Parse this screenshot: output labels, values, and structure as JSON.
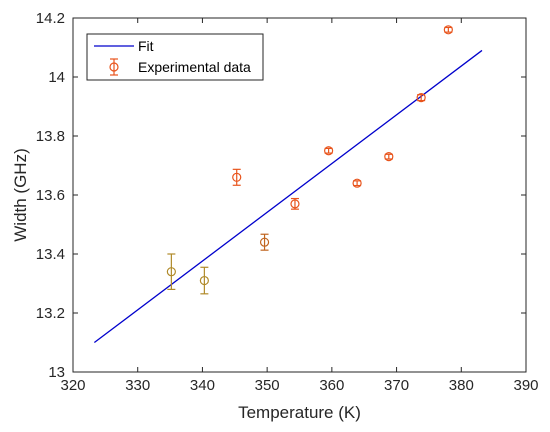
{
  "chart_data": {
    "type": "scatter",
    "xlabel": "Temperature (K)",
    "ylabel": "Width (GHz)",
    "xlim": [
      320,
      390
    ],
    "ylim": [
      13.0,
      14.2
    ],
    "x_ticks": [
      320,
      330,
      340,
      350,
      360,
      370,
      380,
      390
    ],
    "y_ticks": [
      13,
      13.2,
      13.4,
      13.6,
      13.8,
      14,
      14.2
    ],
    "x_tick_labels": [
      "320",
      "330",
      "340",
      "350",
      "360",
      "370",
      "380",
      "390"
    ],
    "y_tick_labels": [
      "13",
      "13.2",
      "13.4",
      "13.6",
      "13.8",
      "14",
      "14.2"
    ],
    "grid": false,
    "legend_position": "top-left",
    "series": [
      {
        "name": "Fit",
        "kind": "line",
        "color": "#0000cc",
        "points": [
          [
            323.3,
            13.1
          ],
          [
            383.2,
            14.09
          ]
        ]
      },
      {
        "name": "Experimental data",
        "kind": "errorbar",
        "color": "#e8541c",
        "points": [
          {
            "x": 335.2,
            "y": 13.34,
            "err": 0.06,
            "color": "#b08a2a"
          },
          {
            "x": 340.3,
            "y": 13.31,
            "err": 0.045,
            "color": "#b08a2a"
          },
          {
            "x": 345.3,
            "y": 13.66,
            "err": 0.027,
            "color": "#e8541c"
          },
          {
            "x": 349.6,
            "y": 13.44,
            "err": 0.027,
            "color": "#c0651f"
          },
          {
            "x": 354.3,
            "y": 13.57,
            "err": 0.018,
            "color": "#e8541c"
          },
          {
            "x": 359.5,
            "y": 13.75,
            "err": 0.008,
            "color": "#e8541c"
          },
          {
            "x": 363.9,
            "y": 13.64,
            "err": 0.008,
            "color": "#e8541c"
          },
          {
            "x": 368.8,
            "y": 13.73,
            "err": 0.008,
            "color": "#e8541c"
          },
          {
            "x": 373.8,
            "y": 13.93,
            "err": 0.01,
            "color": "#e8541c"
          },
          {
            "x": 378.0,
            "y": 14.16,
            "err": 0.008,
            "color": "#e8541c"
          }
        ]
      }
    ]
  },
  "colors": {
    "axis": "#262626",
    "fit_line": "#0000cc",
    "marker_default": "#e8541c",
    "marker_low": "#b08a2a"
  }
}
